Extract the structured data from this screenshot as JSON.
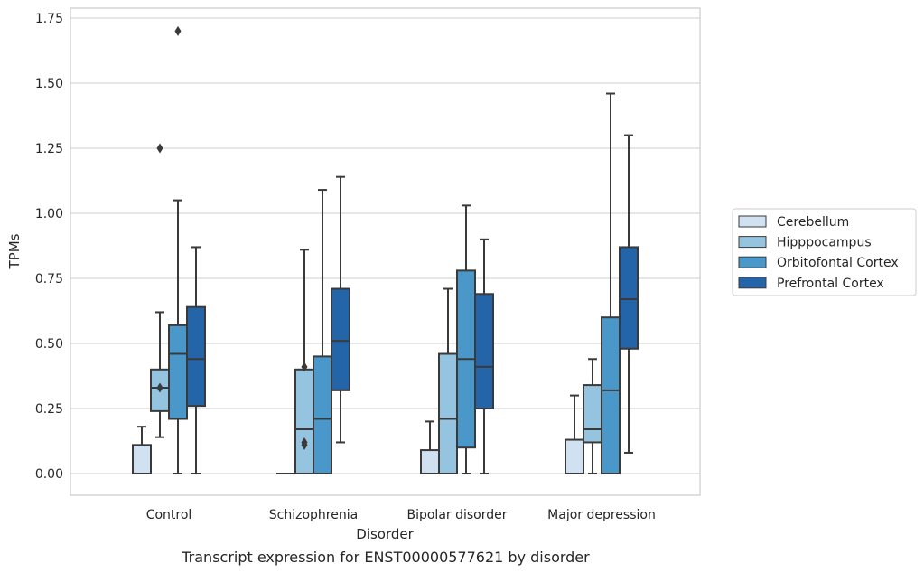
{
  "caption": "Transcript expression for ENST00000577621 by disorder",
  "chart_data": {
    "type": "boxplot",
    "xlabel": "Disorder",
    "ylabel": "TPMs",
    "ylim": [
      -0.08,
      1.79
    ],
    "yticks": [
      "0.00",
      "0.25",
      "0.50",
      "0.75",
      "1.00",
      "1.25",
      "1.50",
      "1.75"
    ],
    "grid": "horizontal",
    "legend_position": "outside-right",
    "categories": [
      "Control",
      "Schizophrenia",
      "Bipolar disorder",
      "Major depression"
    ],
    "series": [
      {
        "name": "Cerebellum",
        "color": "#d0e1f2",
        "boxes": [
          {
            "min": 0.0,
            "q1": 0.0,
            "median": 0.0,
            "q3": 0.11,
            "max": 0.18,
            "outliers": []
          },
          {
            "min": 0.0,
            "q1": 0.0,
            "median": 0.0,
            "q3": 0.0,
            "max": 0.0,
            "outliers": []
          },
          {
            "min": 0.0,
            "q1": 0.0,
            "median": 0.0,
            "q3": 0.09,
            "max": 0.2,
            "outliers": []
          },
          {
            "min": 0.0,
            "q1": 0.0,
            "median": 0.0,
            "q3": 0.13,
            "max": 0.3,
            "outliers": []
          }
        ]
      },
      {
        "name": "Hipppocampus",
        "color": "#94c4df",
        "boxes": [
          {
            "min": 0.14,
            "q1": 0.24,
            "median": 0.33,
            "q3": 0.4,
            "max": 0.62,
            "outliers": [
              0.33,
              1.25
            ]
          },
          {
            "min": 0.0,
            "q1": 0.0,
            "median": 0.17,
            "q3": 0.4,
            "max": 0.86,
            "outliers": [
              0.11,
              0.12,
              0.41
            ]
          },
          {
            "min": 0.0,
            "q1": 0.0,
            "median": 0.21,
            "q3": 0.46,
            "max": 0.71,
            "outliers": []
          },
          {
            "min": 0.0,
            "q1": 0.12,
            "median": 0.17,
            "q3": 0.34,
            "max": 0.44,
            "outliers": []
          }
        ]
      },
      {
        "name": "Orbitofontal Cortex",
        "color": "#4a98c9",
        "boxes": [
          {
            "min": 0.0,
            "q1": 0.21,
            "median": 0.46,
            "q3": 0.57,
            "max": 1.05,
            "outliers": [
              1.7
            ]
          },
          {
            "min": 0.0,
            "q1": 0.0,
            "median": 0.21,
            "q3": 0.45,
            "max": 1.09,
            "outliers": []
          },
          {
            "min": 0.0,
            "q1": 0.1,
            "median": 0.44,
            "q3": 0.78,
            "max": 1.03,
            "outliers": []
          },
          {
            "min": 0.0,
            "q1": 0.0,
            "median": 0.32,
            "q3": 0.6,
            "max": 1.46,
            "outliers": []
          }
        ]
      },
      {
        "name": "Prefrontal Cortex",
        "color": "#2464a9",
        "boxes": [
          {
            "min": 0.0,
            "q1": 0.26,
            "median": 0.44,
            "q3": 0.64,
            "max": 0.87,
            "outliers": []
          },
          {
            "min": 0.12,
            "q1": 0.32,
            "median": 0.51,
            "q3": 0.71,
            "max": 1.14,
            "outliers": []
          },
          {
            "min": 0.0,
            "q1": 0.25,
            "median": 0.41,
            "q3": 0.69,
            "max": 0.9,
            "outliers": []
          },
          {
            "min": 0.08,
            "q1": 0.48,
            "median": 0.67,
            "q3": 0.87,
            "max": 1.3,
            "outliers": []
          }
        ]
      }
    ]
  }
}
